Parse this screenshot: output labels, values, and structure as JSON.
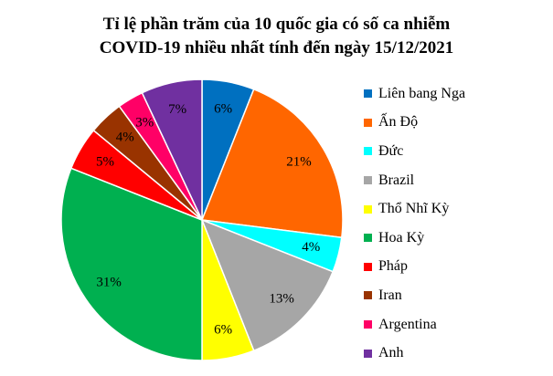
{
  "chart_data": {
    "type": "pie",
    "title_lines": [
      "Tỉ lệ phần trăm của 10 quốc gia có số ca nhiễm",
      "COVID-19 nhiều nhất tính đến ngày 15/12/2021"
    ],
    "categories": [
      "Liên bang Nga",
      "Ấn Độ",
      "Đức",
      "Brazil",
      "Thổ Nhĩ Kỳ",
      "Hoa Kỳ",
      "Pháp",
      "Iran",
      "Argentina",
      "Anh"
    ],
    "values": [
      6,
      21,
      4,
      13,
      6,
      31,
      5,
      4,
      3,
      7
    ],
    "data_labels": [
      "6%",
      "21%",
      "4%",
      "13%",
      "6%",
      "31%",
      "5%",
      "4%",
      "3%",
      "7%"
    ],
    "colors": [
      "#0070C0",
      "#FF6600",
      "#00FFFF",
      "#A6A6A6",
      "#FFFF00",
      "#00B050",
      "#FF0000",
      "#993300",
      "#FF0066",
      "#7030A0"
    ],
    "legend_position": "right"
  }
}
